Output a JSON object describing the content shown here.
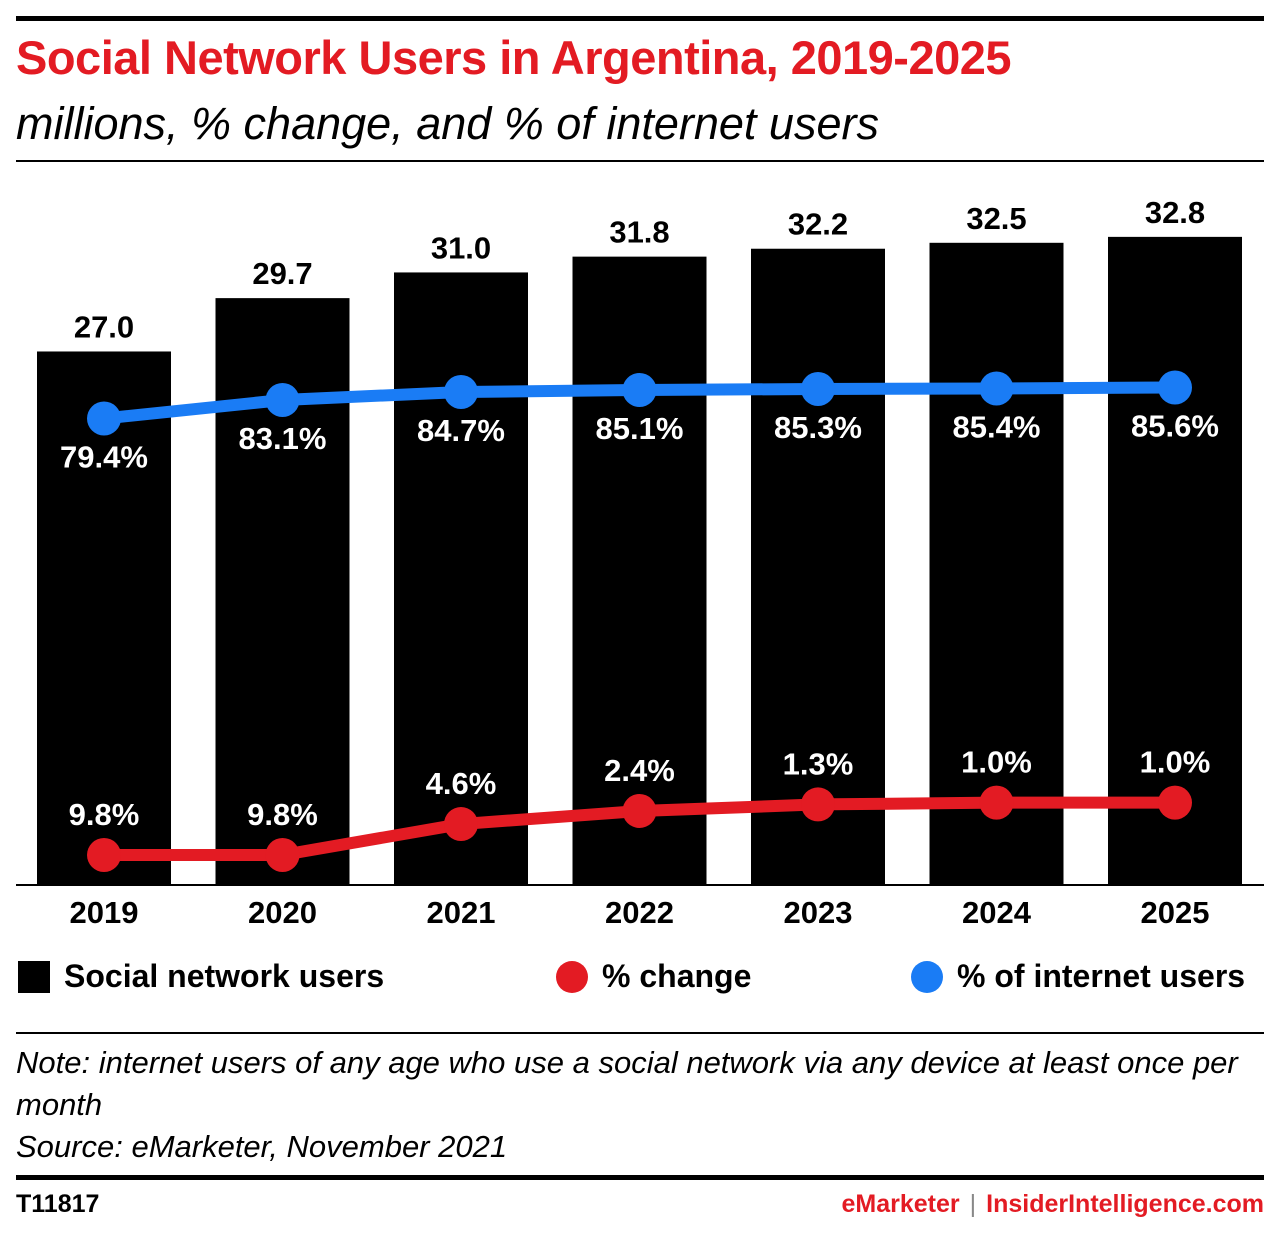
{
  "title": "Social Network Users in Argentina, 2019-2025",
  "subtitle": "millions, % change, and % of internet users",
  "legend": {
    "users": "Social network users",
    "change": "% change",
    "internet": "% of internet users"
  },
  "note": "Note: internet users of any age who use a social network via any device at least once per month",
  "source": "Source: eMarketer, November 2021",
  "footer": {
    "id": "T11817",
    "brand": "eMarketer",
    "separator": "|",
    "site": "InsiderIntelligence.com"
  },
  "colors": {
    "bar": "#000000",
    "change": "#e31b23",
    "internet": "#1a7cf5",
    "title": "#e31b23"
  },
  "chart_data": {
    "type": "bar",
    "categories": [
      "2019",
      "2020",
      "2021",
      "2022",
      "2023",
      "2024",
      "2025"
    ],
    "series": [
      {
        "name": "Social network users",
        "type": "bar",
        "values": [
          27.0,
          29.7,
          31.0,
          31.8,
          32.2,
          32.5,
          32.8
        ],
        "labels": [
          "27.0",
          "29.7",
          "31.0",
          "31.8",
          "32.2",
          "32.5",
          "32.8"
        ]
      },
      {
        "name": "% change",
        "type": "line",
        "values": [
          9.8,
          9.8,
          4.6,
          2.4,
          1.3,
          1.0,
          1.0
        ],
        "labels": [
          "9.8%",
          "9.8%",
          "4.6%",
          "2.4%",
          "1.3%",
          "1.0%",
          "1.0%"
        ]
      },
      {
        "name": "% of internet users",
        "type": "line",
        "values": [
          79.4,
          83.1,
          84.7,
          85.1,
          85.3,
          85.4,
          85.6
        ],
        "labels": [
          "79.4%",
          "83.1%",
          "84.7%",
          "85.1%",
          "85.3%",
          "85.4%",
          "85.6%"
        ]
      }
    ],
    "legend_position": "bottom"
  }
}
